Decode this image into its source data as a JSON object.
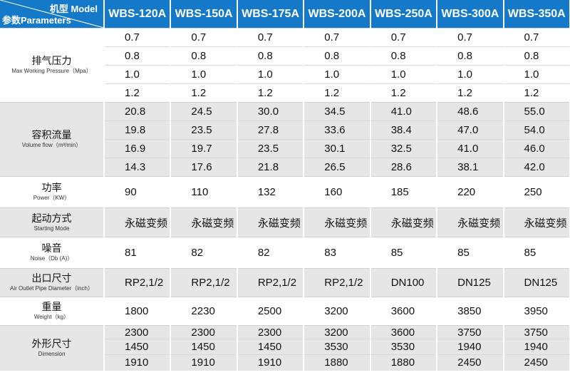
{
  "header": {
    "model_label": "机型 Model",
    "param_label": "参数Parameters",
    "models": [
      "WBS-120A",
      "WBS-150A",
      "WBS-175A",
      "WBS-200A",
      "WBS-250A",
      "WBS-300A",
      "WBS-350A"
    ]
  },
  "groups": [
    {
      "zh": "排气压力",
      "en": "Max Working Pressure（Mpa）",
      "shade": "white",
      "rows": [
        [
          "0.7",
          "0.7",
          "0.7",
          "0.7",
          "0.7",
          "0.7",
          "0.7"
        ],
        [
          "0.8",
          "0.8",
          "0.8",
          "0.8",
          "0.8",
          "0.8",
          "0.8"
        ],
        [
          "1.0",
          "1.0",
          "1.0",
          "1.0",
          "1.0",
          "1.0",
          "1.0"
        ],
        [
          "1.2",
          "1.2",
          "1.2",
          "1.2",
          "1.2",
          "1.2",
          "1.2"
        ]
      ]
    },
    {
      "zh": "容积流量",
      "en": "Volume flow（m³/min）",
      "shade": "gray",
      "rows": [
        [
          "20.8",
          "24.5",
          "30.0",
          "34.5",
          "41.0",
          "48.6",
          "55.0"
        ],
        [
          "19.8",
          "23.5",
          "27.8",
          "33.6",
          "38.4",
          "47.0",
          "54.0"
        ],
        [
          "16.9",
          "19.7",
          "23.5",
          "30.1",
          "32.5",
          "41.0",
          "46.0"
        ],
        [
          "14.3",
          "17.6",
          "21.8",
          "26.5",
          "28.6",
          "38.1",
          "42.0"
        ]
      ]
    },
    {
      "zh": "功率",
      "en": "Power（KW）",
      "shade": "white",
      "rows": [
        [
          "90",
          "110",
          "132",
          "160",
          "185",
          "220",
          "250"
        ]
      ]
    },
    {
      "zh": "起动方式",
      "en": "Starting Mode",
      "shade": "gray",
      "rows": [
        [
          "永磁变频",
          "永磁变频",
          "永磁变频",
          "永磁变频",
          "永磁变频",
          "永磁变频",
          "永磁变频"
        ]
      ]
    },
    {
      "zh": "噪音",
      "en": "Noise（Db (A)）",
      "shade": "white",
      "rows": [
        [
          "81",
          "82",
          "82",
          "83",
          "85",
          "85",
          "85"
        ]
      ]
    },
    {
      "zh": "出口尺寸",
      "en": "Air Outlet Pipe Diameter（inch）",
      "shade": "gray",
      "rows": [
        [
          "RP2,1/2",
          "RP2,1/2",
          "RP2,1/2",
          "RP2,1/2",
          "DN100",
          "DN125",
          "DN125"
        ]
      ]
    },
    {
      "zh": "重量",
      "en": "Weight（kg）",
      "shade": "white",
      "rows": [
        [
          "1800",
          "2230",
          "2500",
          "3200",
          "3600",
          "3850",
          "3950"
        ]
      ]
    },
    {
      "zh": "外形尺寸",
      "en": "Dimension",
      "shade": "gray",
      "rows": [
        [
          "2300",
          "2300",
          "2300",
          "3200",
          "3600",
          "3750",
          "3750"
        ],
        [
          "1450",
          "1450",
          "1450",
          "3530",
          "3530",
          "1940",
          "1940"
        ],
        [
          "1910",
          "1910",
          "1910",
          "1880",
          "1880",
          "2450",
          "2450"
        ]
      ]
    }
  ]
}
